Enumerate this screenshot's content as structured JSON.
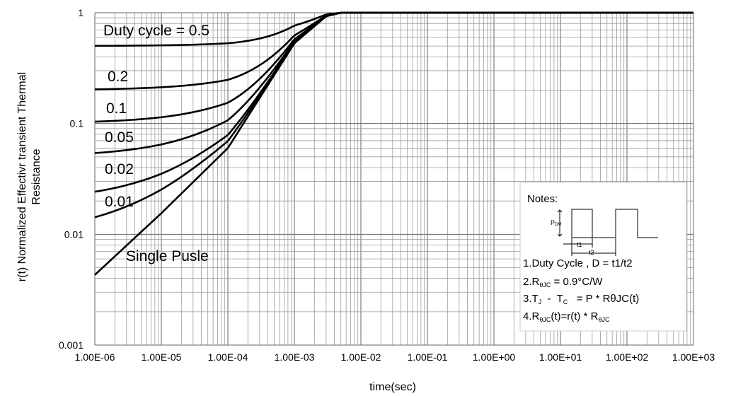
{
  "chart_data": {
    "type": "line",
    "xlabel": "time(sec)",
    "ylabel_line1": "r(t) Normalized Effectivr transient Thermal",
    "ylabel_line2": "Resistance",
    "x_scale": "log",
    "y_scale": "log",
    "xlim": [
      1e-06,
      1000
    ],
    "ylim": [
      0.001,
      1
    ],
    "grid": true,
    "x_ticks": [
      "1.00E-06",
      "1.00E-05",
      "1.00E-04",
      "1.00E-03",
      "1.00E-02",
      "1.00E-01",
      "1.00E+00",
      "1.00E+01",
      "1.00E+02",
      "1.00E+03"
    ],
    "y_ticks": [
      "0.001",
      "0.01",
      "0.1",
      "1"
    ],
    "x_tick_values": [
      1e-06,
      1e-05,
      0.0001,
      0.001,
      0.01,
      0.1,
      1,
      10,
      100,
      1000
    ],
    "y_tick_values": [
      0.001,
      0.01,
      0.1,
      1
    ],
    "series": [
      {
        "name": "Duty cycle = 0.5",
        "duty": 0.5
      },
      {
        "name": "0.2",
        "duty": 0.2
      },
      {
        "name": "0.1",
        "duty": 0.1
      },
      {
        "name": "0.05",
        "duty": 0.05
      },
      {
        "name": "0.02",
        "duty": 0.02
      },
      {
        "name": "0.01",
        "duty": 0.01
      },
      {
        "name": "Single Pusle",
        "duty": 0
      }
    ],
    "single_pulse_points": {
      "x": [
        1e-06,
        1e-05,
        0.0001,
        0.001,
        0.003,
        0.005,
        1000
      ],
      "y": [
        0.0043,
        0.0155,
        0.06,
        0.53,
        0.93,
        1.0,
        1.0
      ]
    },
    "line_color": "#000000"
  },
  "notes": {
    "title": "Notes:",
    "pulse_label": "P",
    "pulse_label_sub": "DM",
    "t1_label": "t1",
    "t2_label": "t2",
    "line1": "1.Duty Cycle , D = t1/t2",
    "line2_a": "2.R",
    "line2_sub": "θJC",
    "line2_b": " = 0.9°C/W",
    "line3_a": "3.T",
    "line3_sub1": "J",
    "line3_b": "  -  T",
    "line3_sub2": "C",
    "line3_c": "   = P * RθJC(t)",
    "line4_a": "4.R",
    "line4_sub1": "θJC",
    "line4_b": "(t)=r(t) * R",
    "line4_sub2": "θJC"
  }
}
